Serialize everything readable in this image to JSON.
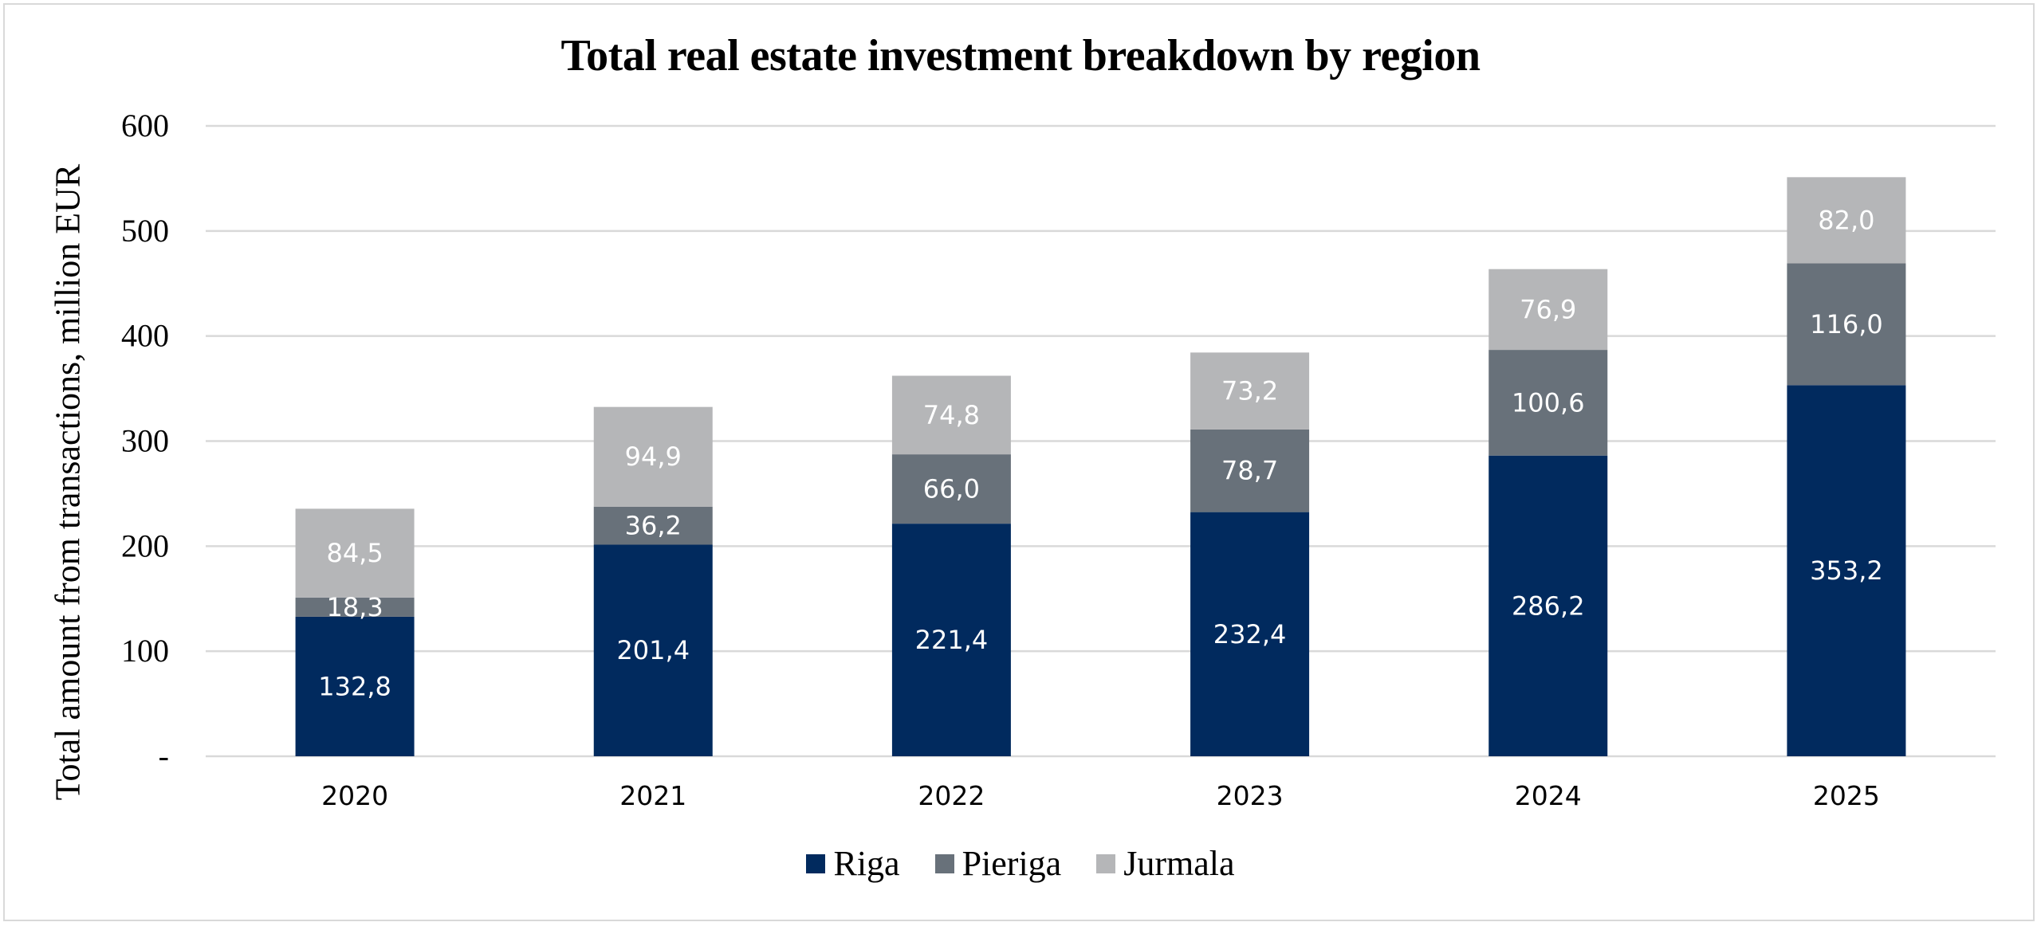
{
  "chart_data": {
    "type": "bar",
    "stacked": true,
    "title": "Total real estate investment breakdown by region",
    "xlabel": "",
    "ylabel": "Total amount from transactions, million EUR",
    "categories": [
      "2020",
      "2021",
      "2022",
      "2023",
      "2024",
      "2025"
    ],
    "series": [
      {
        "name": "Riga",
        "color": "#012a5e",
        "values": [
          132.8,
          201.4,
          221.4,
          232.4,
          286.2,
          353.2
        ],
        "labels": [
          "132,8",
          "201,4",
          "221,4",
          "232,4",
          "286,2",
          "353,2"
        ]
      },
      {
        "name": "Pieriga",
        "color": "#68717a",
        "values": [
          18.3,
          36.2,
          66.0,
          78.7,
          100.6,
          116.0
        ],
        "labels": [
          "18,3",
          "36,2",
          "66,0",
          "78,7",
          "100,6",
          "116,0"
        ]
      },
      {
        "name": "Jurmala",
        "color": "#b5b6b8",
        "values": [
          84.5,
          94.9,
          74.8,
          73.2,
          76.9,
          82.0
        ],
        "labels": [
          "84,5",
          "94,9",
          "74,8",
          "73,2",
          "76,9",
          "82,0"
        ]
      }
    ],
    "ylim": [
      0,
      600
    ],
    "yticks": [
      0,
      100,
      200,
      300,
      400,
      500,
      600
    ],
    "ytick_labels": [
      "-",
      "100",
      "200",
      "300",
      "400",
      "500",
      "600"
    ],
    "grid": true,
    "grid_color": "#d9d9d9",
    "legend_position": "bottom-center"
  }
}
